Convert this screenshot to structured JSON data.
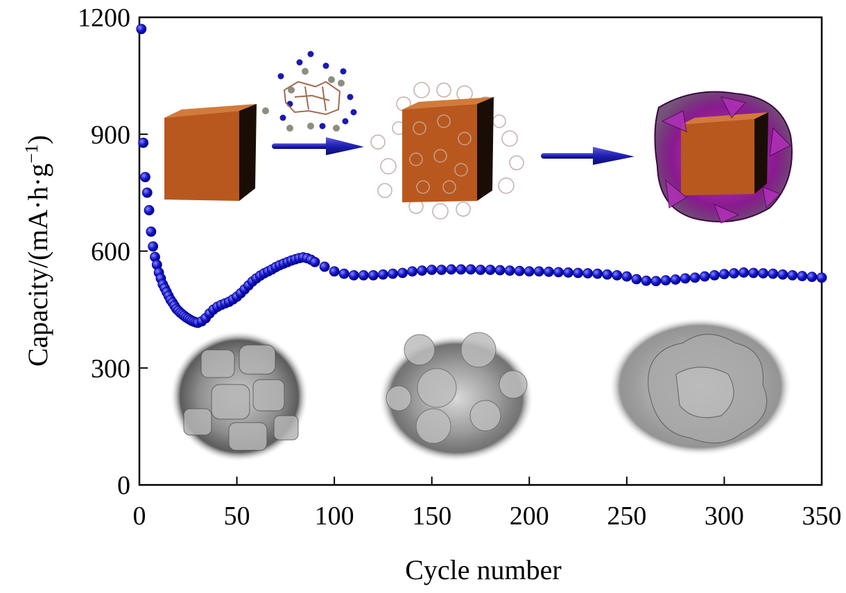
{
  "chart_data": {
    "type": "scatter",
    "xlabel": "Cycle number",
    "ylabel": "Capacity/(mA·h·g",
    "ylabel_sup": "−1",
    "ylabel_close": ")",
    "xlim": [
      0,
      350
    ],
    "ylim": [
      0,
      1200
    ],
    "x_ticks": [
      0,
      50,
      100,
      150,
      200,
      250,
      300,
      350
    ],
    "y_ticks": [
      0,
      300,
      600,
      900,
      1200
    ],
    "x_tick_labels": [
      "0",
      "50",
      "100",
      "150",
      "200",
      "250",
      "300",
      "350"
    ],
    "y_tick_labels": [
      "0",
      "300",
      "600",
      "900",
      "1200"
    ],
    "grid": false,
    "legend": "none",
    "marker_color": "#1a1ad0",
    "marker_dark": "#00008a",
    "series": [
      {
        "x": [
          1,
          2,
          3,
          4,
          5,
          6,
          7,
          8,
          9,
          10,
          11,
          12,
          13,
          14,
          15,
          16,
          17,
          18,
          19,
          20,
          21,
          22,
          23,
          24,
          25,
          26,
          27,
          28,
          29,
          30,
          32,
          34,
          36,
          38,
          40,
          42,
          44,
          46,
          48,
          50,
          52,
          54,
          56,
          58,
          60,
          62,
          64,
          66,
          68,
          70,
          72,
          74,
          76,
          78,
          80,
          82,
          84,
          86,
          88,
          90,
          95,
          100,
          105,
          110,
          115,
          120,
          125,
          130,
          135,
          140,
          145,
          150,
          155,
          160,
          165,
          170,
          175,
          180,
          185,
          190,
          195,
          200,
          205,
          210,
          215,
          220,
          225,
          230,
          235,
          240,
          245,
          250,
          255,
          260,
          265,
          270,
          275,
          280,
          285,
          290,
          295,
          300,
          305,
          310,
          315,
          320,
          325,
          330,
          335,
          340,
          345,
          350
        ],
        "y": [
          1170,
          878,
          790,
          750,
          705,
          650,
          612,
          585,
          565,
          545,
          530,
          515,
          505,
          495,
          485,
          475,
          468,
          460,
          452,
          447,
          442,
          438,
          434,
          430,
          427,
          424,
          421,
          419,
          417,
          416,
          420,
          428,
          440,
          450,
          457,
          462,
          466,
          470,
          476,
          483,
          492,
          502,
          512,
          522,
          530,
          537,
          543,
          548,
          553,
          559,
          564,
          568,
          572,
          576,
          579,
          582,
          584,
          582,
          578,
          572,
          560,
          548,
          542,
          538,
          538,
          538,
          540,
          542,
          544,
          548,
          550,
          552,
          552,
          553,
          553,
          553,
          552,
          552,
          551,
          550,
          549,
          548,
          548,
          547,
          546,
          545,
          544,
          543,
          542,
          540,
          538,
          535,
          528,
          524,
          523,
          525,
          527,
          530,
          532,
          535,
          538,
          541,
          543,
          545,
          544,
          543,
          542,
          540,
          538,
          536,
          534,
          532
        ]
      }
    ]
  },
  "insets": {
    "schematic": [
      "nanocube",
      "arrow",
      "coated-nanocube",
      "arrow",
      "shell-nanocube"
    ],
    "sem_images": [
      "sem-particles-pristine",
      "sem-particles-coated",
      "sem-particles-shell"
    ],
    "colors": {
      "cube_face": "#b8581e",
      "cube_top": "#d27a3a",
      "cube_side": "#1a0d05",
      "arrow": "#1f1fb0",
      "shell": "#9a1fa0",
      "mof": "#b79a9a"
    }
  }
}
